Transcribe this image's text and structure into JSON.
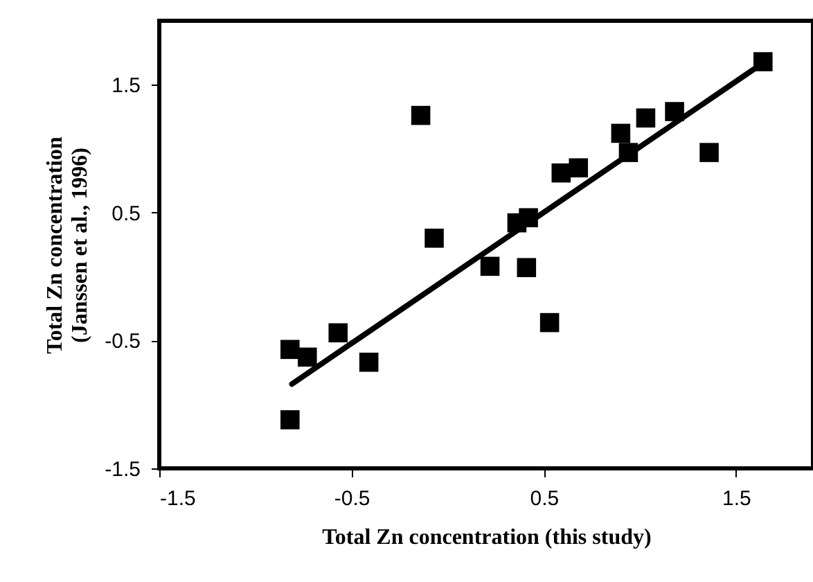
{
  "chart_data": {
    "type": "scatter",
    "xlabel": "Total Zn concentration (this study)",
    "ylabel": "Total Zn concentration\n(Janssen et al., 1996)",
    "xlim": [
      -1.5,
      1.9
    ],
    "ylim": [
      -1.5,
      2.0
    ],
    "xticks": [
      -1.5,
      -0.5,
      0.5,
      1.5
    ],
    "yticks": [
      -1.5,
      -0.5,
      0.5,
      1.5
    ],
    "grid": false,
    "series": [
      {
        "color": "#000000",
        "marker": "square",
        "x": [
          -0.82,
          -0.82,
          -0.73,
          -0.57,
          -0.41,
          -0.14,
          -0.07,
          0.22,
          0.36,
          0.42,
          0.41,
          0.53,
          0.59,
          0.68,
          0.9,
          0.94,
          1.03,
          1.18,
          1.36,
          1.64
        ],
        "values": [
          -1.12,
          -0.57,
          -0.63,
          -0.44,
          -0.67,
          1.26,
          0.3,
          0.08,
          0.42,
          0.46,
          0.07,
          -0.36,
          0.81,
          0.85,
          1.12,
          0.97,
          1.24,
          1.29,
          0.97,
          1.68
        ]
      },
      {
        "type": "line",
        "color": "#000000",
        "line_style": "solid",
        "marker": "none",
        "x": [
          -0.81,
          1.64
        ],
        "values": [
          -0.84,
          1.67
        ]
      }
    ]
  }
}
